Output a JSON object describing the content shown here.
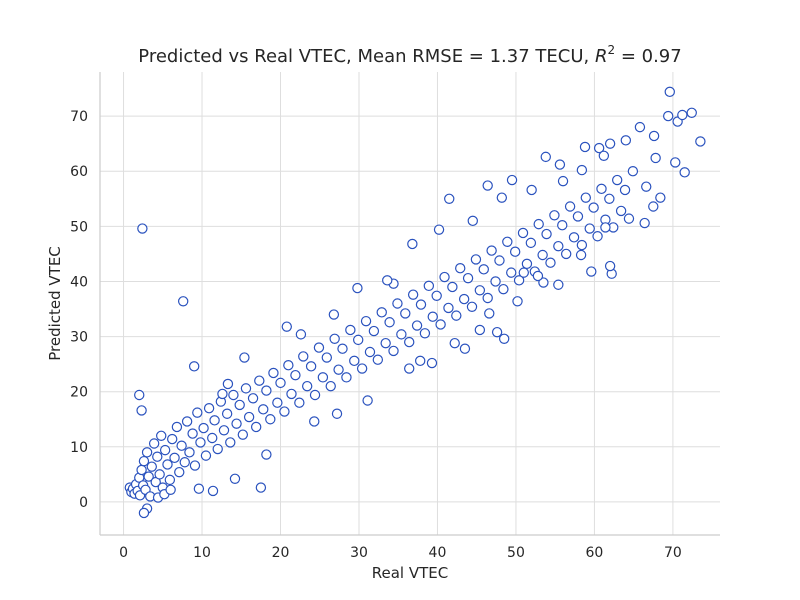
{
  "chart_data": {
    "type": "scatter",
    "title": "Predicted vs Real VTEC, Mean RMSE = 1.37 TECU, R² = 0.97",
    "title_parts": {
      "prefix": "Predicted vs Real VTEC, Mean RMSE = 1.37 TECU, ",
      "r_symbol": "R",
      "r_exponent": "2",
      "suffix": " = 0.97"
    },
    "xlabel": "Real VTEC",
    "ylabel": "Predicted VTEC",
    "xlim": [
      -3,
      76
    ],
    "ylim": [
      -6,
      78
    ],
    "xticks": [
      0,
      10,
      20,
      30,
      40,
      50,
      60,
      70
    ],
    "yticks": [
      0,
      10,
      20,
      30,
      40,
      50,
      60,
      70
    ],
    "grid": true,
    "marker": {
      "shape": "circle",
      "fill": "#ffffff",
      "edge": "#2a52be"
    },
    "points": [
      [
        0.8,
        2.6
      ],
      [
        1.0,
        1.8
      ],
      [
        1.2,
        2.4
      ],
      [
        1.4,
        1.5
      ],
      [
        1.6,
        3.2
      ],
      [
        1.8,
        2.0
      ],
      [
        2.0,
        4.4
      ],
      [
        2.1,
        1.2
      ],
      [
        2.3,
        5.8
      ],
      [
        2.5,
        3.0
      ],
      [
        2.6,
        7.4
      ],
      [
        2.8,
        2.2
      ],
      [
        3.0,
        9.0
      ],
      [
        3.2,
        4.6
      ],
      [
        3.4,
        1.0
      ],
      [
        3.6,
        6.4
      ],
      [
        3.9,
        10.6
      ],
      [
        4.1,
        3.6
      ],
      [
        4.3,
        8.2
      ],
      [
        4.6,
        5.0
      ],
      [
        4.8,
        12.0
      ],
      [
        5.0,
        2.6
      ],
      [
        5.3,
        9.4
      ],
      [
        5.6,
        6.8
      ],
      [
        5.9,
        4.0
      ],
      [
        6.2,
        11.4
      ],
      [
        6.5,
        8.0
      ],
      [
        6.8,
        13.6
      ],
      [
        7.1,
        5.4
      ],
      [
        7.4,
        10.2
      ],
      [
        7.8,
        7.2
      ],
      [
        8.1,
        14.6
      ],
      [
        8.4,
        9.0
      ],
      [
        8.8,
        12.4
      ],
      [
        9.1,
        6.6
      ],
      [
        9.4,
        16.2
      ],
      [
        9.8,
        10.8
      ],
      [
        10.2,
        13.4
      ],
      [
        10.5,
        8.4
      ],
      [
        10.9,
        17.0
      ],
      [
        11.3,
        11.6
      ],
      [
        11.6,
        14.8
      ],
      [
        12.0,
        9.6
      ],
      [
        12.4,
        18.2
      ],
      [
        12.8,
        13.0
      ],
      [
        13.2,
        16.0
      ],
      [
        13.6,
        10.8
      ],
      [
        14.0,
        19.4
      ],
      [
        14.4,
        14.2
      ],
      [
        14.8,
        17.6
      ],
      [
        15.2,
        12.2
      ],
      [
        15.6,
        20.6
      ],
      [
        16.0,
        15.4
      ],
      [
        16.5,
        18.8
      ],
      [
        16.9,
        13.6
      ],
      [
        17.3,
        22.0
      ],
      [
        17.8,
        16.8
      ],
      [
        18.2,
        20.2
      ],
      [
        18.7,
        15.0
      ],
      [
        19.1,
        23.4
      ],
      [
        19.6,
        18.0
      ],
      [
        20.0,
        21.6
      ],
      [
        20.5,
        16.4
      ],
      [
        21.0,
        24.8
      ],
      [
        21.4,
        19.6
      ],
      [
        21.9,
        23.0
      ],
      [
        22.4,
        18.0
      ],
      [
        22.9,
        26.4
      ],
      [
        23.4,
        21.0
      ],
      [
        23.9,
        24.6
      ],
      [
        24.4,
        19.4
      ],
      [
        24.9,
        28.0
      ],
      [
        25.4,
        22.6
      ],
      [
        25.9,
        26.2
      ],
      [
        26.4,
        21.0
      ],
      [
        26.9,
        29.6
      ],
      [
        27.4,
        24.0
      ],
      [
        27.9,
        27.8
      ],
      [
        28.4,
        22.6
      ],
      [
        28.9,
        31.2
      ],
      [
        29.4,
        25.6
      ],
      [
        29.9,
        29.4
      ],
      [
        30.4,
        24.2
      ],
      [
        30.9,
        32.8
      ],
      [
        31.4,
        27.2
      ],
      [
        31.9,
        31.0
      ],
      [
        32.4,
        25.8
      ],
      [
        32.9,
        34.4
      ],
      [
        33.4,
        28.8
      ],
      [
        33.9,
        32.6
      ],
      [
        34.4,
        27.4
      ],
      [
        34.9,
        36.0
      ],
      [
        35.4,
        30.4
      ],
      [
        35.9,
        34.2
      ],
      [
        36.4,
        29.0
      ],
      [
        36.9,
        37.6
      ],
      [
        37.4,
        32.0
      ],
      [
        37.9,
        35.8
      ],
      [
        38.4,
        30.6
      ],
      [
        38.9,
        39.2
      ],
      [
        39.4,
        33.6
      ],
      [
        39.9,
        37.4
      ],
      [
        40.4,
        32.2
      ],
      [
        40.9,
        40.8
      ],
      [
        41.4,
        35.2
      ],
      [
        41.9,
        39.0
      ],
      [
        42.4,
        33.8
      ],
      [
        42.9,
        42.4
      ],
      [
        43.4,
        36.8
      ],
      [
        43.9,
        40.6
      ],
      [
        44.4,
        35.4
      ],
      [
        44.9,
        44.0
      ],
      [
        45.4,
        38.4
      ],
      [
        45.9,
        42.2
      ],
      [
        46.4,
        37.0
      ],
      [
        46.9,
        45.6
      ],
      [
        47.4,
        40.0
      ],
      [
        47.9,
        43.8
      ],
      [
        48.4,
        38.6
      ],
      [
        48.9,
        47.2
      ],
      [
        49.4,
        41.6
      ],
      [
        49.9,
        45.4
      ],
      [
        50.4,
        40.2
      ],
      [
        50.9,
        48.8
      ],
      [
        51.4,
        43.2
      ],
      [
        51.9,
        47.0
      ],
      [
        52.4,
        41.8
      ],
      [
        52.9,
        50.4
      ],
      [
        53.4,
        44.8
      ],
      [
        53.9,
        48.6
      ],
      [
        54.4,
        43.4
      ],
      [
        54.9,
        52.0
      ],
      [
        55.4,
        46.4
      ],
      [
        55.9,
        50.2
      ],
      [
        56.4,
        45.0
      ],
      [
        56.9,
        53.6
      ],
      [
        57.4,
        48.0
      ],
      [
        57.9,
        51.8
      ],
      [
        58.4,
        46.6
      ],
      [
        58.9,
        55.2
      ],
      [
        59.4,
        49.6
      ],
      [
        59.9,
        53.4
      ],
      [
        60.4,
        48.2
      ],
      [
        60.9,
        56.8
      ],
      [
        61.4,
        51.2
      ],
      [
        61.9,
        55.0
      ],
      [
        62.4,
        49.8
      ],
      [
        62.9,
        58.4
      ],
      [
        63.4,
        52.8
      ],
      [
        63.9,
        56.6
      ],
      [
        64.4,
        51.4
      ],
      [
        64.9,
        60.0
      ],
      [
        4.4,
        0.8
      ],
      [
        3.0,
        -1.2
      ],
      [
        2.6,
        -2.0
      ],
      [
        5.2,
        1.4
      ],
      [
        6.0,
        2.2
      ],
      [
        9.6,
        2.4
      ],
      [
        11.4,
        2.0
      ],
      [
        14.2,
        4.2
      ],
      [
        17.5,
        2.6
      ],
      [
        18.2,
        8.6
      ],
      [
        24.3,
        14.6
      ],
      [
        27.2,
        16.0
      ],
      [
        31.1,
        18.4
      ],
      [
        36.4,
        24.2
      ],
      [
        39.3,
        25.2
      ],
      [
        43.5,
        27.8
      ],
      [
        47.6,
        30.8
      ],
      [
        48.5,
        29.6
      ],
      [
        51.0,
        41.6
      ],
      [
        53.5,
        39.8
      ],
      [
        55.4,
        39.4
      ],
      [
        58.3,
        44.8
      ],
      [
        59.6,
        41.8
      ],
      [
        62.2,
        41.4
      ],
      [
        62.0,
        42.8
      ],
      [
        61.4,
        49.8
      ],
      [
        66.4,
        50.6
      ],
      [
        67.5,
        53.6
      ],
      [
        68.4,
        55.2
      ],
      [
        70.3,
        61.6
      ],
      [
        71.5,
        59.8
      ],
      [
        73.5,
        65.4
      ],
      [
        66.6,
        57.2
      ],
      [
        67.8,
        62.4
      ],
      [
        69.4,
        70.0
      ],
      [
        69.6,
        74.4
      ],
      [
        70.6,
        69.0
      ],
      [
        71.2,
        70.2
      ],
      [
        72.4,
        70.6
      ],
      [
        2.4,
        49.6
      ],
      [
        7.6,
        36.4
      ],
      [
        9.0,
        24.6
      ],
      [
        2.0,
        19.4
      ],
      [
        2.3,
        16.6
      ],
      [
        15.4,
        26.2
      ],
      [
        20.8,
        31.8
      ],
      [
        34.4,
        39.6
      ],
      [
        41.5,
        55.0
      ],
      [
        46.4,
        57.4
      ],
      [
        49.5,
        58.4
      ],
      [
        53.8,
        62.6
      ],
      [
        55.6,
        61.2
      ],
      [
        58.8,
        64.4
      ],
      [
        60.6,
        64.2
      ],
      [
        62.0,
        65.0
      ],
      [
        64.0,
        65.6
      ],
      [
        65.8,
        68.0
      ],
      [
        67.6,
        66.4
      ],
      [
        12.6,
        19.6
      ],
      [
        13.3,
        21.4
      ],
      [
        22.6,
        30.4
      ],
      [
        26.8,
        34.0
      ],
      [
        29.8,
        38.8
      ],
      [
        33.6,
        40.2
      ],
      [
        36.8,
        46.8
      ],
      [
        40.2,
        49.4
      ],
      [
        44.5,
        51.0
      ],
      [
        48.2,
        55.2
      ],
      [
        52.0,
        56.6
      ],
      [
        56.0,
        58.2
      ],
      [
        58.4,
        60.2
      ],
      [
        61.2,
        62.8
      ],
      [
        37.8,
        25.6
      ],
      [
        45.4,
        31.2
      ],
      [
        50.2,
        36.4
      ],
      [
        46.6,
        34.2
      ],
      [
        52.8,
        41.0
      ],
      [
        42.2,
        28.8
      ]
    ]
  }
}
